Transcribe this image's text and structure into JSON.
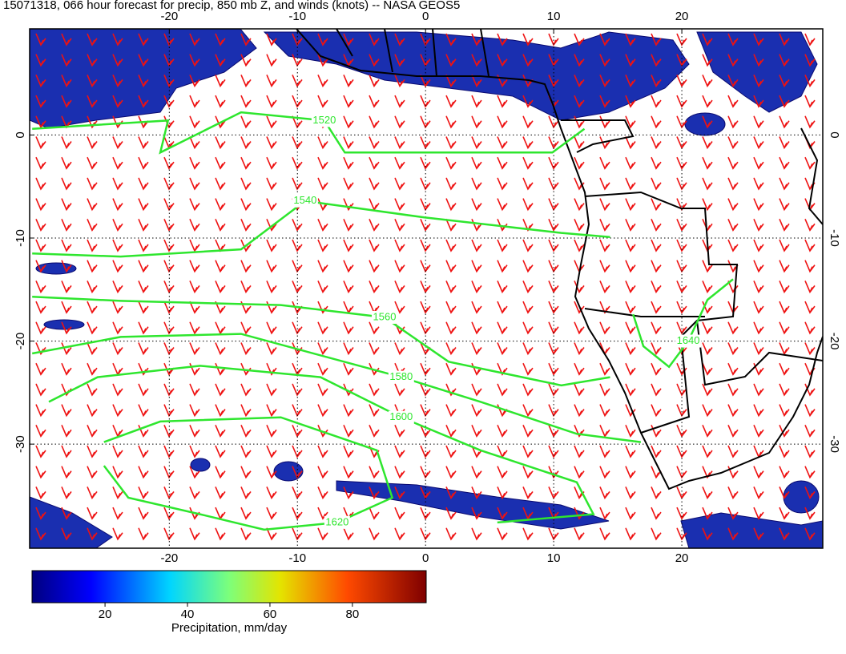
{
  "chart_data": {
    "type": "map",
    "title": "15071318, 066 hour forecast for precip, 850 mb Z, and winds (knots) -- NASA GEOS5",
    "xlim": [
      -30.9,
      31
    ],
    "ylim": [
      -40.1,
      10.3
    ],
    "xticks": [
      -20,
      -10,
      0,
      10,
      20
    ],
    "yticks": [
      0,
      -10,
      -20,
      -30
    ],
    "grid": true,
    "contour_color": "#2ee62e",
    "contours": [
      {
        "level": 1520,
        "points": [
          [
            -30.7,
            0.6
          ],
          [
            -20.1,
            1.4
          ],
          [
            -20.7,
            -1.7
          ],
          [
            -14.4,
            2.2
          ],
          [
            -7.9,
            1.4
          ],
          [
            -6.3,
            -1.7
          ],
          [
            9.9,
            -1.7
          ],
          [
            12.4,
            0.6
          ]
        ]
      },
      {
        "level": 1540,
        "points": [
          [
            -30.7,
            -11.5
          ],
          [
            -23.8,
            -11.8
          ],
          [
            -14.4,
            -11.1
          ],
          [
            -9.4,
            -6.4
          ],
          [
            -0.1,
            -8.0
          ],
          [
            10.6,
            -9.5
          ],
          [
            14.4,
            -9.9
          ]
        ]
      },
      {
        "level": 1560,
        "points": [
          [
            -30.7,
            -15.7
          ],
          [
            -23.8,
            -16.1
          ],
          [
            -11.3,
            -16.5
          ],
          [
            -3.2,
            -17.7
          ],
          [
            1.8,
            -22.0
          ],
          [
            10.6,
            -24.3
          ],
          [
            14.4,
            -23.5
          ]
        ]
      },
      {
        "level": 1580,
        "points": [
          [
            -30.7,
            -21.2
          ],
          [
            -23.8,
            -19.6
          ],
          [
            -14.4,
            -19.3
          ],
          [
            -1.9,
            -23.5
          ],
          [
            4.3,
            -25.9
          ],
          [
            11.8,
            -29.0
          ],
          [
            16.8,
            -29.8
          ]
        ]
      },
      {
        "level": 1600,
        "points": [
          [
            -29.4,
            -25.9
          ],
          [
            -25.6,
            -23.5
          ],
          [
            -17.6,
            -22.4
          ],
          [
            -8.2,
            -23.5
          ],
          [
            -1.9,
            -27.4
          ],
          [
            4.3,
            -30.6
          ],
          [
            11.8,
            -33.7
          ],
          [
            13.1,
            -36.8
          ],
          [
            5.6,
            -37.6
          ]
        ]
      },
      {
        "level": 1620,
        "points": [
          [
            -25.1,
            -29.8
          ],
          [
            -20.7,
            -27.8
          ],
          [
            -11.3,
            -27.4
          ],
          [
            -3.8,
            -30.6
          ],
          [
            -2.6,
            -35.2
          ],
          [
            -6.9,
            -37.6
          ],
          [
            -12.6,
            -38.3
          ],
          [
            -17.6,
            -36.8
          ],
          [
            -23.2,
            -35.2
          ],
          [
            -25.1,
            -32.1
          ]
        ]
      },
      {
        "level": 1640,
        "points": [
          [
            16.2,
            -17.4
          ],
          [
            17.0,
            -20.5
          ],
          [
            19.0,
            -22.5
          ],
          [
            20.5,
            -20.0
          ],
          [
            22.0,
            -16.0
          ],
          [
            24.0,
            -14.0
          ]
        ]
      }
    ],
    "colorbar": {
      "label": "Precipitation, mm/day",
      "lim": [
        2.3,
        97.9
      ],
      "ticks": [
        20,
        40,
        60,
        80
      ]
    }
  }
}
